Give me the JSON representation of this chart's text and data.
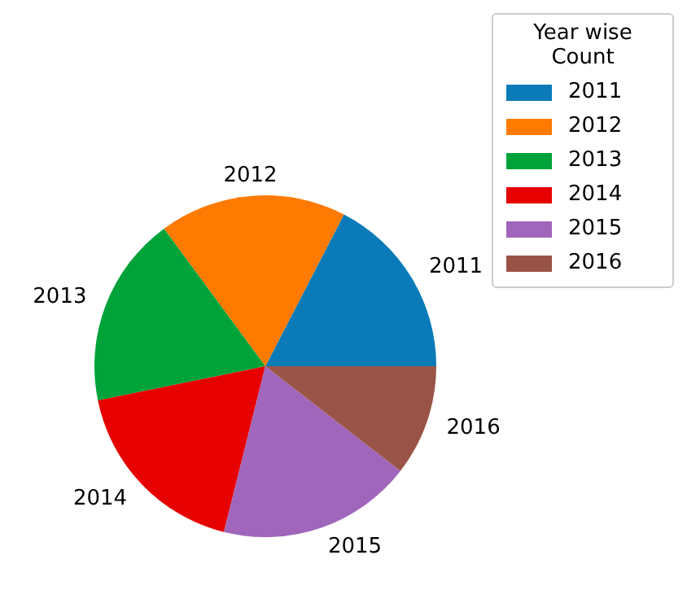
{
  "chart_data": {
    "type": "pie",
    "legend_title": "Year wise Count",
    "legend": "top right",
    "categories": [
      "2011",
      "2012",
      "2013",
      "2014",
      "2015",
      "2016"
    ],
    "values": [
      17.4,
      17.7,
      18.1,
      17.9,
      18.4,
      10.5
    ],
    "colors": [
      "#0a7bb8",
      "#ff7a00",
      "#00a33a",
      "#e60000",
      "#a066bb",
      "#9a5447"
    ]
  }
}
